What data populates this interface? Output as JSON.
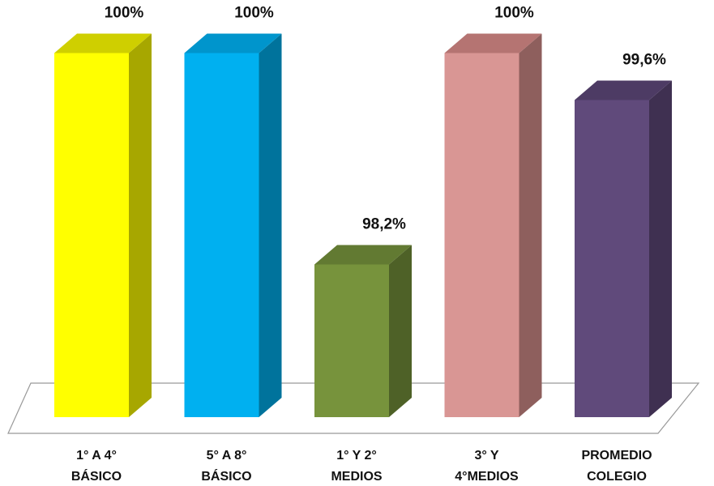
{
  "chart_data": {
    "type": "bar",
    "title": "",
    "xlabel": "",
    "ylabel": "",
    "categories": [
      [
        "1° A 4°",
        "BÁSICO"
      ],
      [
        "5° A 8°",
        "BÁSICO"
      ],
      [
        "1° Y 2°",
        "MEDIOS"
      ],
      [
        "3° Y",
        "4°MEDIOS"
      ],
      [
        "PROMEDIO",
        "COLEGIO"
      ]
    ],
    "values": [
      100,
      100,
      98.2,
      100,
      99.6
    ],
    "value_labels": [
      "100%",
      "100%",
      "98,2%",
      "100%",
      "99,6%"
    ],
    "ylim": [
      96.9,
      100
    ],
    "grid": false,
    "legend": "none",
    "style": "3d-column",
    "colors": [
      {
        "front": "#ffff00",
        "side": "#a7a700",
        "top": "#cfcf00"
      },
      {
        "front": "#00b0f0",
        "side": "#00739c",
        "top": "#0095cc"
      },
      {
        "front": "#77933c",
        "side": "#4e6127",
        "top": "#627a32"
      },
      {
        "front": "#d99694",
        "side": "#8e5f5d",
        "top": "#b57472"
      },
      {
        "front": "#604a7b",
        "side": "#3f3051",
        "top": "#4d3b64"
      }
    ],
    "floor_color": "#ffffff",
    "floor_edge": "#999999"
  }
}
